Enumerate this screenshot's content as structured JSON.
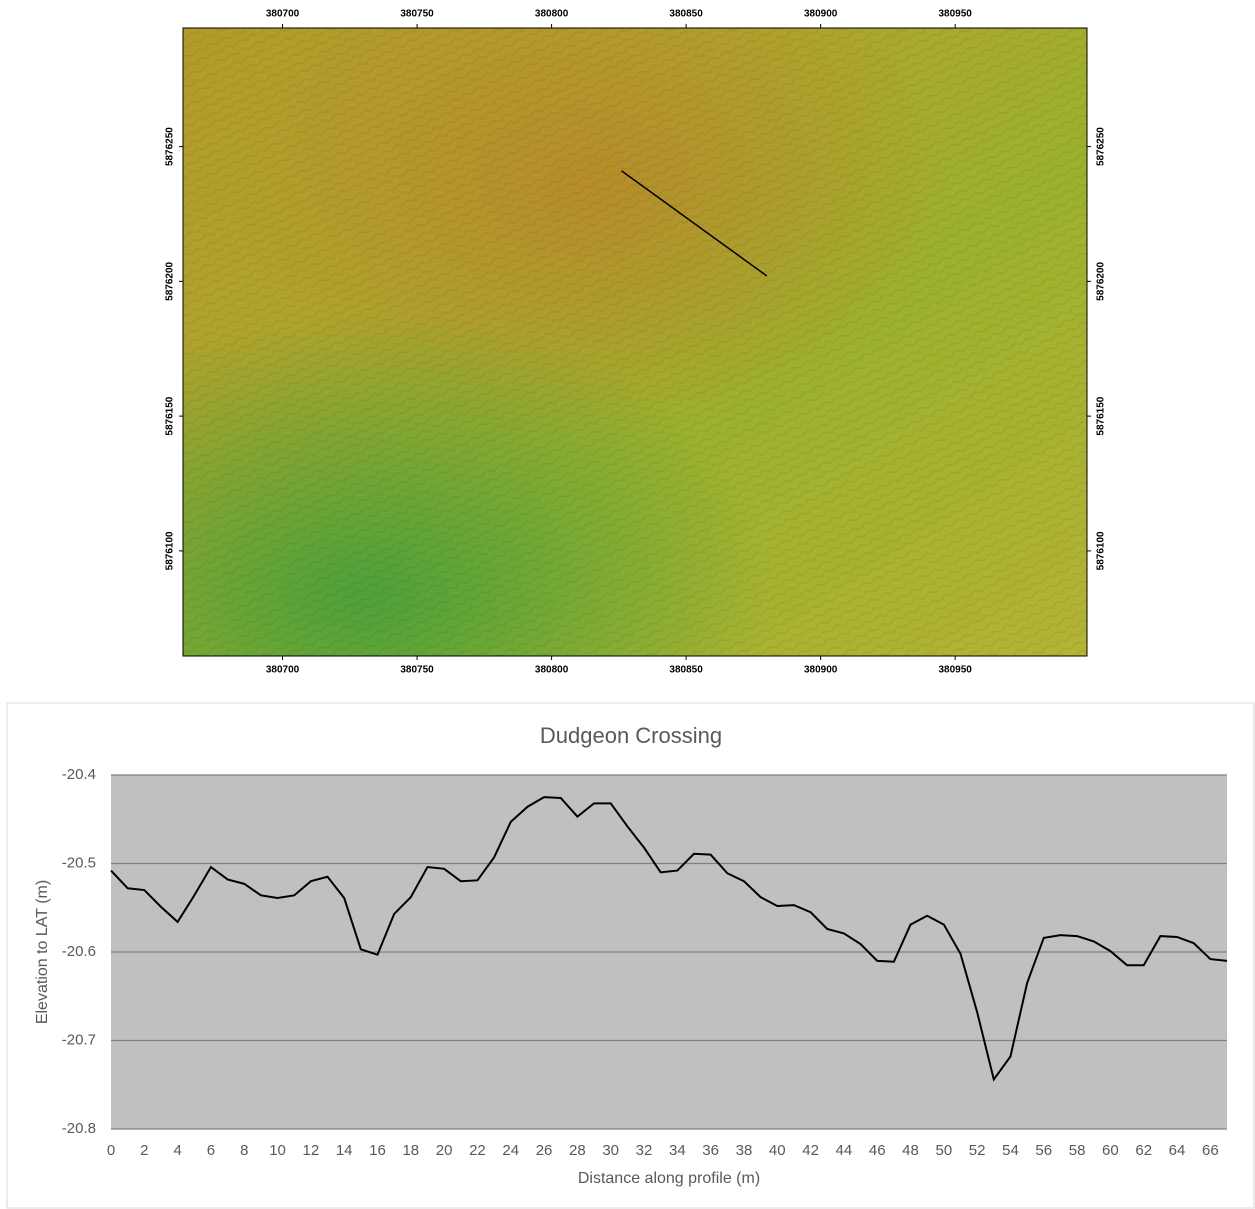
{
  "chart_data": [
    {
      "type": "map",
      "xlim": [
        380663,
        380999
      ],
      "ylim": [
        5876061,
        5876294
      ],
      "xticks": [
        380700,
        380750,
        380800,
        380850,
        380900,
        380950
      ],
      "yticks": [
        5876100,
        5876150,
        5876200,
        5876250
      ],
      "line_x": [
        380826,
        380880
      ],
      "line_y": [
        5876241,
        5876202
      ],
      "line_color": "#000000"
    },
    {
      "type": "line",
      "title": "Dudgeon Crossing",
      "xlabel": "Distance along profile (m)",
      "ylabel": "Elevation to LAT (m)",
      "x": [
        0,
        1,
        2,
        3,
        4,
        5,
        6,
        7,
        8,
        9,
        10,
        11,
        12,
        13,
        14,
        15,
        16,
        17,
        18,
        19,
        20,
        21,
        22,
        23,
        24,
        25,
        26,
        27,
        28,
        29,
        30,
        31,
        32,
        33,
        34,
        35,
        36,
        37,
        38,
        39,
        40,
        41,
        42,
        43,
        44,
        45,
        46,
        47,
        48,
        49,
        50,
        51,
        52,
        53,
        54,
        55,
        56,
        57,
        58,
        59,
        60,
        61,
        62,
        63,
        64,
        65,
        66,
        67
      ],
      "values": [
        -20.508,
        -20.528,
        -20.53,
        -20.549,
        -20.566,
        -20.536,
        -20.504,
        -20.518,
        -20.523,
        -20.536,
        -20.539,
        -20.536,
        -20.52,
        -20.515,
        -20.539,
        -20.597,
        -20.603,
        -20.557,
        -20.538,
        -20.504,
        -20.506,
        -20.52,
        -20.519,
        -20.493,
        -20.453,
        -20.436,
        -20.425,
        -20.426,
        -20.447,
        -20.432,
        -20.432,
        -20.458,
        -20.482,
        -20.51,
        -20.508,
        -20.489,
        -20.49,
        -20.511,
        -20.52,
        -20.538,
        -20.548,
        -20.547,
        -20.555,
        -20.574,
        -20.579,
        -20.591,
        -20.61,
        -20.611,
        -20.569,
        -20.559,
        -20.569,
        -20.602,
        -20.668,
        -20.744,
        -20.718,
        -20.635,
        -20.584,
        -20.581,
        -20.582,
        -20.588,
        -20.599,
        -20.615,
        -20.615,
        -20.582,
        -20.583,
        -20.59,
        -20.608,
        -20.61
      ],
      "color": "#000000",
      "xlim": [
        0,
        67
      ],
      "ylim": [
        -20.8,
        -20.4
      ],
      "xticks": [
        0,
        2,
        4,
        6,
        8,
        10,
        12,
        14,
        16,
        18,
        20,
        22,
        24,
        26,
        28,
        30,
        32,
        34,
        36,
        38,
        40,
        42,
        44,
        46,
        48,
        50,
        52,
        54,
        56,
        58,
        60,
        62,
        64,
        66
      ],
      "yticks": [
        -20.8,
        -20.7,
        -20.6,
        -20.5,
        -20.4
      ],
      "grid": true,
      "background": "#c0c0c0"
    }
  ]
}
